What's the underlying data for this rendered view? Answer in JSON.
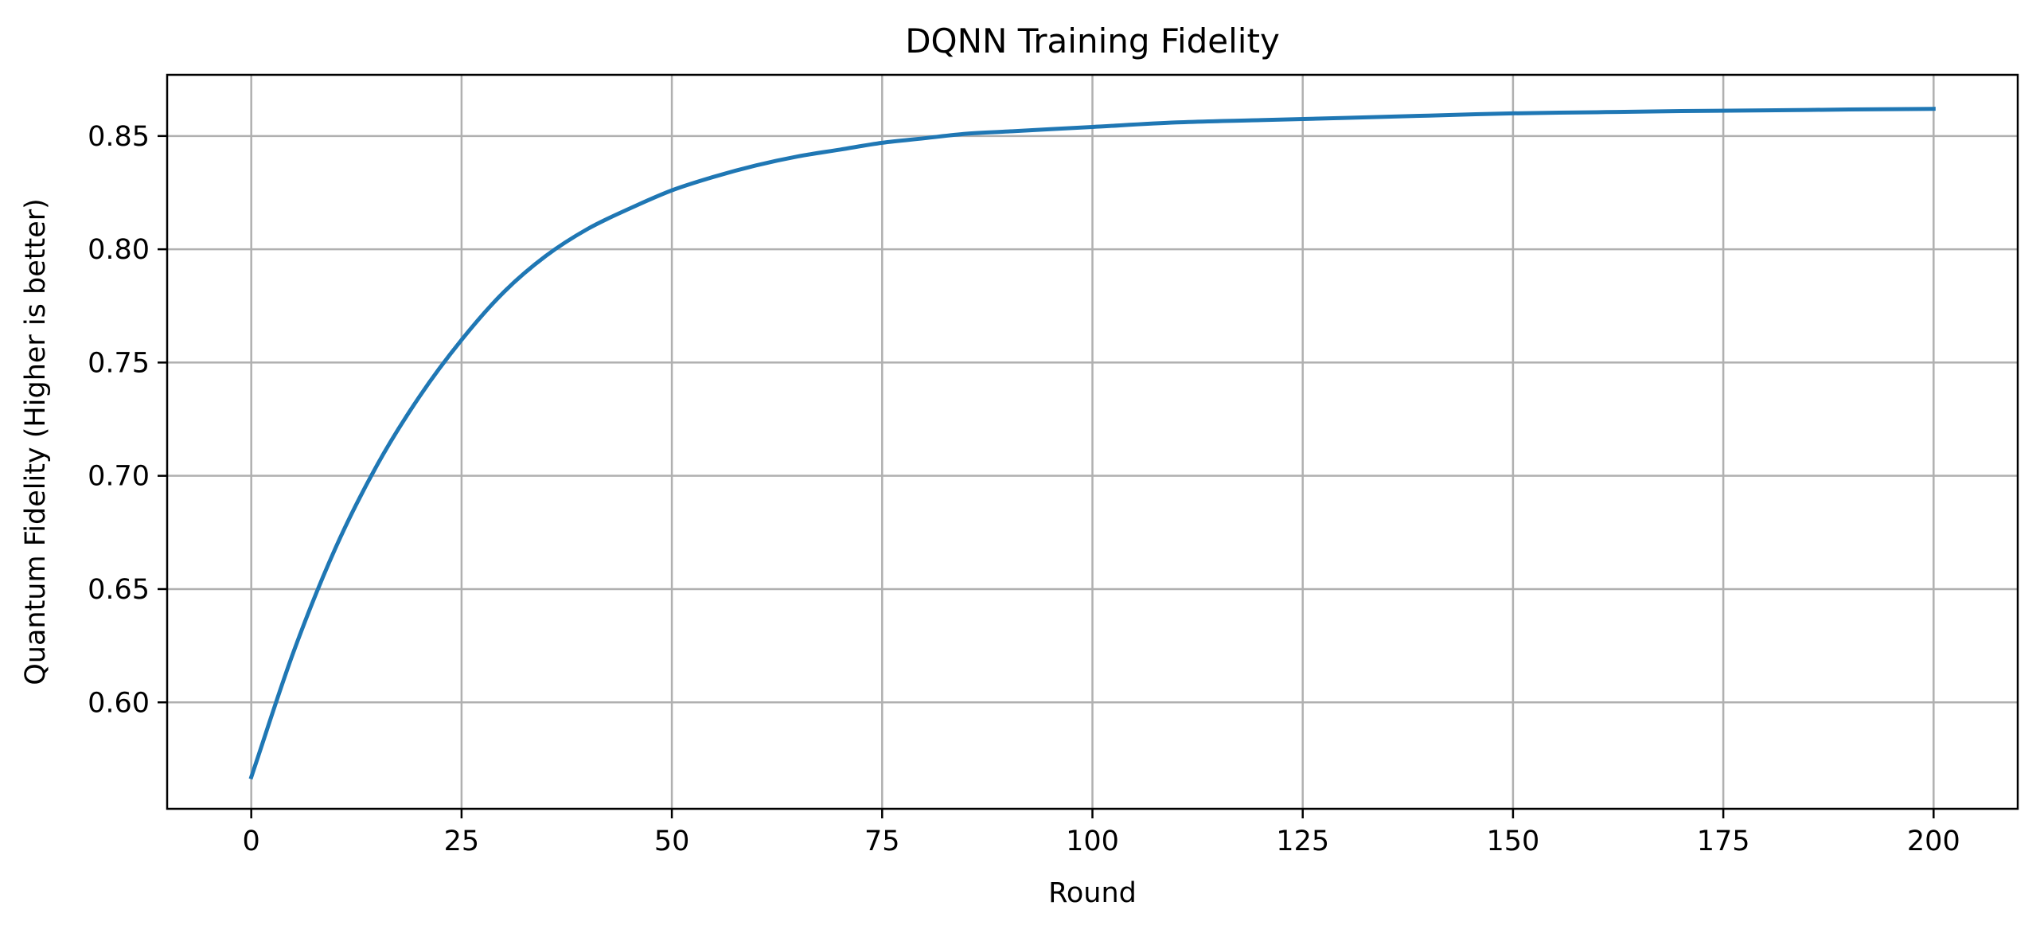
{
  "chart_data": {
    "type": "line",
    "title": "DQNN Training Fidelity",
    "xlabel": "Round",
    "ylabel": "Quantum Fidelity (Higher is better)",
    "xlim": [
      -10,
      210
    ],
    "ylim": [
      0.553,
      0.877
    ],
    "xticks": [
      0,
      25,
      50,
      75,
      100,
      125,
      150,
      175,
      200
    ],
    "xtick_labels": [
      "0",
      "25",
      "50",
      "75",
      "100",
      "125",
      "150",
      "175",
      "200"
    ],
    "yticks": [
      0.6,
      0.65,
      0.7,
      0.75,
      0.8,
      0.85
    ],
    "ytick_labels": [
      "0.60",
      "0.65",
      "0.70",
      "0.75",
      "0.80",
      "0.85"
    ],
    "grid": true,
    "series": [
      {
        "color": "#1f77b4",
        "x": [
          0,
          5,
          10,
          15,
          20,
          25,
          30,
          35,
          40,
          45,
          50,
          55,
          60,
          65,
          70,
          75,
          80,
          85,
          90,
          95,
          100,
          110,
          120,
          130,
          140,
          150,
          160,
          170,
          180,
          190,
          200
        ],
        "y": [
          0.567,
          0.622,
          0.668,
          0.705,
          0.735,
          0.76,
          0.781,
          0.797,
          0.809,
          0.818,
          0.826,
          0.832,
          0.837,
          0.841,
          0.844,
          0.847,
          0.849,
          0.851,
          0.852,
          0.853,
          0.854,
          0.856,
          0.857,
          0.858,
          0.859,
          0.86,
          0.8605,
          0.861,
          0.8613,
          0.8617,
          0.862
        ]
      }
    ]
  }
}
